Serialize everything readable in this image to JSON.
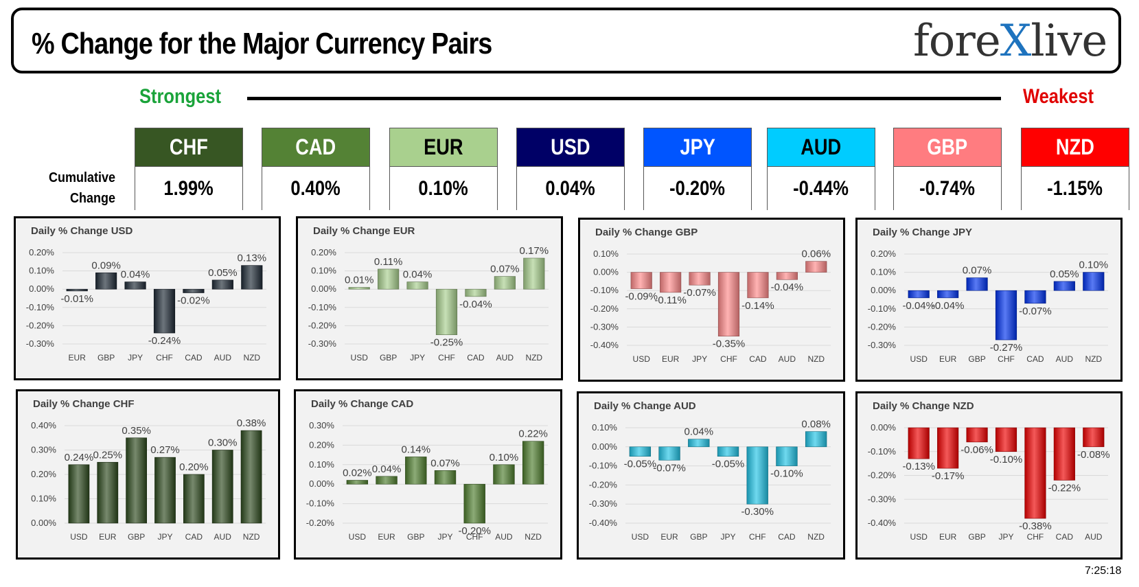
{
  "header": {
    "title": "% Change for the Major Currency Pairs",
    "logo_left": "fore",
    "logo_x": "X",
    "logo_right": "live"
  },
  "labels": {
    "strongest": "Strongest",
    "weakest": "Weakest",
    "cumulative_line1": "Cumulative",
    "cumulative_line2": "Change"
  },
  "currencies": [
    {
      "name": "CHF",
      "value": "1.99%",
      "bg": "#375623",
      "fg": "#ffffff"
    },
    {
      "name": "CAD",
      "value": "0.40%",
      "bg": "#548235",
      "fg": "#ffffff"
    },
    {
      "name": "EUR",
      "value": "0.10%",
      "bg": "#a9d08e",
      "fg": "#000000"
    },
    {
      "name": "USD",
      "value": "0.04%",
      "bg": "#000066",
      "fg": "#ffffff"
    },
    {
      "name": "JPY",
      "value": "-0.20%",
      "bg": "#0055ff",
      "fg": "#ffffff"
    },
    {
      "name": "AUD",
      "value": "-0.44%",
      "bg": "#00ccff",
      "fg": "#000000"
    },
    {
      "name": "GBP",
      "value": "-0.74%",
      "bg": "#ff7c80",
      "fg": "#ffffff"
    },
    {
      "name": "NZD",
      "value": "-1.15%",
      "bg": "#ff0000",
      "fg": "#ffffff"
    }
  ],
  "timestamp": "7:25:18",
  "chart_data": [
    {
      "type": "bar",
      "title": "Daily % Change USD",
      "color": "#1f2a36",
      "categories": [
        "EUR",
        "GBP",
        "JPY",
        "CHF",
        "CAD",
        "AUD",
        "NZD"
      ],
      "values": [
        -0.01,
        0.09,
        0.04,
        -0.24,
        -0.02,
        0.05,
        0.13
      ],
      "labels": [
        "-0.01%",
        "0.09%",
        "0.04%",
        "-0.24%",
        "-0.02%",
        "0.05%",
        "0.13%"
      ],
      "ylim": [
        -0.3,
        0.2
      ],
      "ticks": [
        0.2,
        0.1,
        0.0,
        -0.1,
        -0.2,
        -0.3
      ],
      "tick_labels": [
        "0.20%",
        "0.10%",
        "0.00%",
        "-0.10%",
        "-0.20%",
        "-0.30%"
      ]
    },
    {
      "type": "bar",
      "title": "Daily % Change EUR",
      "color": "#a9d08e",
      "categories": [
        "USD",
        "GBP",
        "JPY",
        "CHF",
        "CAD",
        "AUD",
        "NZD"
      ],
      "values": [
        0.01,
        0.11,
        0.04,
        -0.25,
        -0.04,
        0.07,
        0.17
      ],
      "labels": [
        "0.01%",
        "0.11%",
        "0.04%",
        "-0.25%",
        "-0.04%",
        "0.07%",
        "0.17%"
      ],
      "ylim": [
        -0.3,
        0.2
      ],
      "ticks": [
        0.2,
        0.1,
        0.0,
        -0.1,
        -0.2,
        -0.3
      ],
      "tick_labels": [
        "0.20%",
        "0.10%",
        "0.00%",
        "-0.10%",
        "-0.20%",
        "-0.30%"
      ]
    },
    {
      "type": "bar",
      "title": "Daily % Change GBP",
      "color": "#ff8a8a",
      "categories": [
        "USD",
        "EUR",
        "JPY",
        "CHF",
        "CAD",
        "AUD",
        "NZD"
      ],
      "values": [
        -0.09,
        -0.11,
        -0.07,
        -0.35,
        -0.14,
        -0.04,
        0.06
      ],
      "labels": [
        "-0.09%",
        "-0.11%",
        "-0.07%",
        "-0.35%",
        "-0.14%",
        "-0.04%",
        "0.06%"
      ],
      "ylim": [
        -0.4,
        0.1
      ],
      "ticks": [
        0.1,
        0.0,
        -0.1,
        -0.2,
        -0.3,
        -0.4
      ],
      "tick_labels": [
        "0.10%",
        "0.00%",
        "-0.10%",
        "-0.20%",
        "-0.30%",
        "-0.40%"
      ]
    },
    {
      "type": "bar",
      "title": "Daily % Change JPY",
      "color": "#0033ee",
      "categories": [
        "USD",
        "EUR",
        "GBP",
        "CHF",
        "CAD",
        "AUD",
        "NZD"
      ],
      "values": [
        -0.04,
        -0.04,
        0.07,
        -0.27,
        -0.07,
        0.05,
        0.1
      ],
      "labels": [
        "-0.04%",
        "-0.04%",
        "0.07%",
        "-0.27%",
        "-0.07%",
        "0.05%",
        "0.10%"
      ],
      "ylim": [
        -0.3,
        0.2
      ],
      "ticks": [
        0.2,
        0.1,
        0.0,
        -0.1,
        -0.2,
        -0.3
      ],
      "tick_labels": [
        "0.20%",
        "0.10%",
        "0.00%",
        "-0.10%",
        "-0.20%",
        "-0.30%"
      ]
    },
    {
      "type": "bar",
      "title": "Daily % Change CHF",
      "color": "#2d4a1e",
      "categories": [
        "USD",
        "EUR",
        "GBP",
        "JPY",
        "CAD",
        "AUD",
        "NZD"
      ],
      "values": [
        0.24,
        0.25,
        0.35,
        0.27,
        0.2,
        0.3,
        0.38
      ],
      "labels": [
        "0.24%",
        "0.25%",
        "0.35%",
        "0.27%",
        "0.20%",
        "0.30%",
        "0.38%"
      ],
      "ylim": [
        0.0,
        0.4
      ],
      "ticks": [
        0.4,
        0.3,
        0.2,
        0.1,
        0.0
      ],
      "tick_labels": [
        "0.40%",
        "0.30%",
        "0.20%",
        "0.10%",
        "0.00%"
      ]
    },
    {
      "type": "bar",
      "title": "Daily % Change CAD",
      "color": "#4e7d2e",
      "categories": [
        "USD",
        "EUR",
        "GBP",
        "JPY",
        "CHF",
        "AUD",
        "NZD"
      ],
      "values": [
        0.02,
        0.04,
        0.14,
        0.07,
        -0.2,
        0.1,
        0.22
      ],
      "labels": [
        "0.02%",
        "0.04%",
        "0.14%",
        "0.07%",
        "-0.20%",
        "0.10%",
        "0.22%"
      ],
      "ylim": [
        -0.2,
        0.3
      ],
      "ticks": [
        0.3,
        0.2,
        0.1,
        0.0,
        -0.1,
        -0.2
      ],
      "tick_labels": [
        "0.30%",
        "0.20%",
        "0.10%",
        "0.00%",
        "-0.10%",
        "-0.20%"
      ]
    },
    {
      "type": "bar",
      "title": "Daily % Change AUD",
      "color": "#22c4e6",
      "categories": [
        "USD",
        "EUR",
        "GBP",
        "JPY",
        "CHF",
        "CAD",
        "NZD"
      ],
      "values": [
        -0.05,
        -0.07,
        0.04,
        -0.05,
        -0.3,
        -0.1,
        0.08
      ],
      "labels": [
        "-0.05%",
        "-0.07%",
        "0.04%",
        "-0.05%",
        "-0.30%",
        "-0.10%",
        "0.08%"
      ],
      "ylim": [
        -0.4,
        0.1
      ],
      "ticks": [
        0.1,
        0.0,
        -0.1,
        -0.2,
        -0.3,
        -0.4
      ],
      "tick_labels": [
        "0.10%",
        "0.00%",
        "-0.10%",
        "-0.20%",
        "-0.30%",
        "-0.40%"
      ]
    },
    {
      "type": "bar",
      "title": "Daily % Change NZD",
      "color": "#ee0000",
      "categories": [
        "USD",
        "EUR",
        "GBP",
        "JPY",
        "CHF",
        "CAD",
        "AUD"
      ],
      "values": [
        -0.13,
        -0.17,
        -0.06,
        -0.1,
        -0.38,
        -0.22,
        -0.08
      ],
      "labels": [
        "-0.13%",
        "-0.17%",
        "-0.06%",
        "-0.10%",
        "-0.38%",
        "-0.22%",
        "-0.08%"
      ],
      "ylim": [
        -0.4,
        0.0
      ],
      "ticks": [
        0.0,
        -0.1,
        -0.2,
        -0.3,
        -0.4
      ],
      "tick_labels": [
        "0.00%",
        "-0.10%",
        "-0.20%",
        "-0.30%",
        "-0.40%"
      ]
    }
  ]
}
